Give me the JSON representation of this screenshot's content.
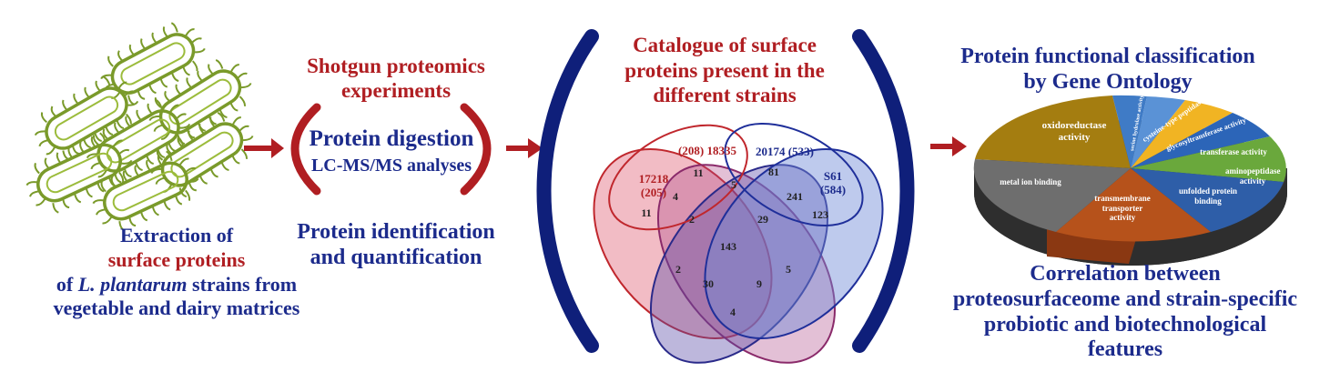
{
  "extraction": {
    "line1": "Extraction of",
    "line2": "surface proteins",
    "line3_pre": "of ",
    "line3_italic": "L. plantarum",
    "line3_post": " strains from",
    "line4": "vegetable and dairy matrices"
  },
  "shotgun": {
    "title_line1": "Shotgun proteomics",
    "title_line2": "experiments",
    "digestion": "Protein digestion",
    "lcms": "LC-MS/MS analyses",
    "ident_line1": "Protein identification",
    "ident_line2": "and quantification"
  },
  "catalogue": {
    "line1": "Catalogue of surface",
    "line2": "proteins present in the",
    "line3": "different strains"
  },
  "venn": {
    "sets": [
      {
        "label": "17218",
        "count": "(205)",
        "color": "#c0272d"
      },
      {
        "label": "18335",
        "count": "(208)",
        "color": "#c0272d"
      },
      {
        "label": "20174",
        "count": "(533)",
        "color": "#1f2f9a"
      },
      {
        "label": "S61",
        "count": "(584)",
        "color": "#1f2f9a"
      }
    ],
    "regions": [
      "11",
      "4",
      "11",
      "5",
      "2",
      "81",
      "241",
      "123",
      "29",
      "143",
      "2",
      "30",
      "9",
      "5",
      "4"
    ]
  },
  "go": {
    "title_line1": "Protein functional classification",
    "title_line2": "by Gene Ontology",
    "slices": [
      {
        "label": "oxidoreductase activity",
        "color": "#a47d10"
      },
      {
        "label": "serine hydrolase activity",
        "color": "#3f7bc6"
      },
      {
        "label": "cysteine-type peptidase activity",
        "color": "#5a92d6"
      },
      {
        "label": "glycosyltransferase activity",
        "color": "#f1b423"
      },
      {
        "label": "transferase activity",
        "color": "#2c65b8"
      },
      {
        "label": "aminopeptidase activity",
        "color": "#6aa83c"
      },
      {
        "label": "unfolded protein binding",
        "color": "#2e5ea8"
      },
      {
        "label": "transmembrane transporter activity",
        "color": "#b6521b"
      },
      {
        "label": "metal ion binding",
        "color": "#6e6e6e"
      }
    ],
    "correlation_line1": "Correlation between",
    "correlation_line2": "proteosurfaceome and strain-specific",
    "correlation_line3": "probiotic and biotechnological",
    "correlation_line4": "features"
  },
  "colors": {
    "navy": "#1c2b8c",
    "red": "#b01e22",
    "arrow": "#b01e22",
    "bacteria": "#7a9a2a"
  }
}
